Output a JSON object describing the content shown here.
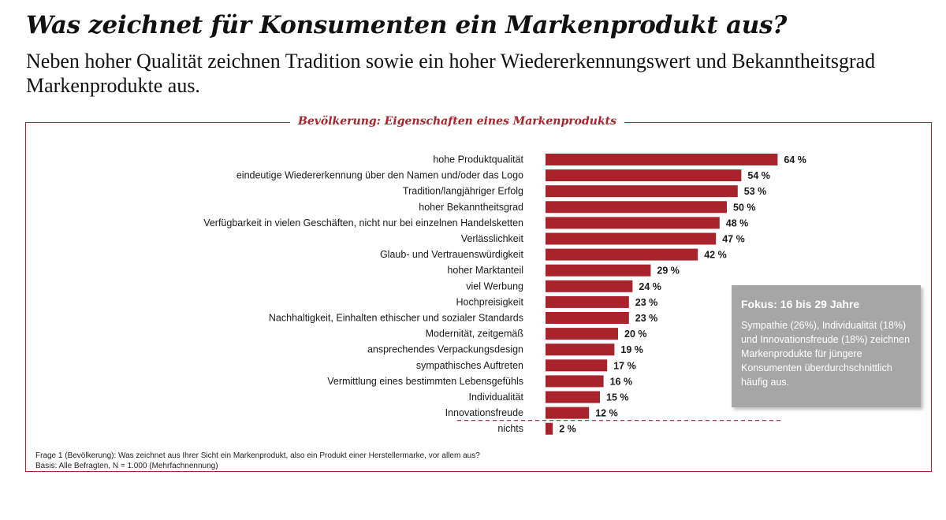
{
  "header": {
    "title": "Was zeichnet für Konsumenten ein Markenprodukt aus?",
    "subtitle": "Neben hoher Qualität zeichnen Tradition sowie ein hoher Wiedererkennungswert und Bekanntheitsgrad Markenprodukte aus."
  },
  "chart_data": {
    "type": "bar",
    "orientation": "horizontal",
    "title": "Bevölkerung: Eigenschaften eines Markenprodukts",
    "categories": [
      "hohe Produktqualität",
      "eindeutige Wiedererkennung über den Namen und/oder das Logo",
      "Tradition/langjähriger Erfolg",
      "hoher Bekanntheitsgrad",
      "Verfügbarkeit in vielen Geschäften, nicht nur bei einzelnen Handelsketten",
      "Verlässlichkeit",
      "Glaub- und Vertrauenswürdigkeit",
      "hoher Marktanteil",
      "viel Werbung",
      "Hochpreisigkeit",
      "Nachhaltigkeit, Einhalten ethischer und sozialer Standards",
      "Modernität, zeitgemäß",
      "ansprechendes Verpackungsdesign",
      "sympathisches Auftreten",
      "Vermittlung eines bestimmten Lebensgefühls",
      "Individualität",
      "Innovationsfreude",
      "nichts"
    ],
    "values": [
      64,
      54,
      53,
      50,
      48,
      47,
      42,
      29,
      24,
      23,
      23,
      20,
      19,
      17,
      16,
      15,
      12,
      2
    ],
    "value_labels": [
      "64 %",
      "54 %",
      "53 %",
      "50 %",
      "48 %",
      "47 %",
      "42 %",
      "29 %",
      "24 %",
      "23 %",
      "23 %",
      "20 %",
      "19 %",
      "17 %",
      "16 %",
      "15 %",
      "12 %",
      "2 %"
    ],
    "unit": "%",
    "xlim": [
      0,
      100
    ],
    "grid": false,
    "legend": "none",
    "separator_before_index": 17,
    "bar_color": "#a8232b"
  },
  "focus_box": {
    "title": "Fokus: 16 bis 29 Jahre",
    "text": "Sympathie (26%), Individualität (18%) und Innovationsfreude (18%) zeichnen Markenprodukte für jüngere Konsumenten überdurchschnittlich häufig aus.",
    "background": "#a6a6a6"
  },
  "footnote": {
    "question": "Frage 1 (Bevölkerung): Was zeichnet aus Ihrer Sicht ein Markenprodukt, also ein Produkt einer Herstellermarke, vor allem aus?",
    "basis": "Basis: Alle Befragten, N = 1.000 (Mehrfachnennung)"
  }
}
